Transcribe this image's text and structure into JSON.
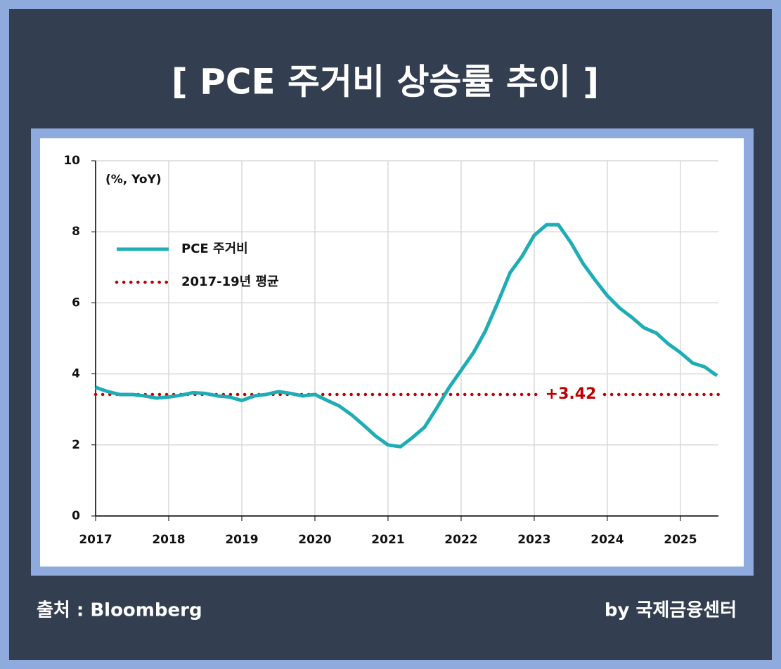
{
  "title": "[ PCE 주거비 상승률 추이 ]",
  "source": "출처 : Bloomberg",
  "credit": "by 국제금융센터",
  "chart_data": {
    "type": "line",
    "unit_label": "(%, YoY)",
    "x": [
      2017,
      2017.17,
      2017.33,
      2017.5,
      2017.67,
      2017.83,
      2018,
      2018.17,
      2018.33,
      2018.5,
      2018.67,
      2018.83,
      2019,
      2019.17,
      2019.33,
      2019.5,
      2019.67,
      2019.83,
      2020,
      2020.17,
      2020.33,
      2020.5,
      2020.67,
      2020.83,
      2021,
      2021.17,
      2021.33,
      2021.5,
      2021.67,
      2021.83,
      2022,
      2022.17,
      2022.33,
      2022.5,
      2022.67,
      2022.83,
      2023,
      2023.17,
      2023.33,
      2023.5,
      2023.67,
      2023.83,
      2024,
      2024.17,
      2024.33,
      2024.5,
      2024.67,
      2024.83,
      2025,
      2025.17,
      2025.33,
      2025.5
    ],
    "series": [
      {
        "name": "PCE 주거비",
        "color": "#1fadb5",
        "values": [
          3.62,
          3.5,
          3.42,
          3.42,
          3.38,
          3.32,
          3.35,
          3.4,
          3.47,
          3.45,
          3.38,
          3.35,
          3.25,
          3.38,
          3.42,
          3.5,
          3.45,
          3.38,
          3.42,
          3.25,
          3.1,
          2.85,
          2.55,
          2.25,
          2.0,
          1.95,
          2.2,
          2.5,
          3.05,
          3.6,
          4.1,
          4.6,
          5.2,
          6.0,
          6.85,
          7.3,
          7.9,
          8.2,
          8.2,
          7.7,
          7.1,
          6.65,
          6.2,
          5.85,
          5.6,
          5.3,
          5.15,
          4.85,
          4.6,
          4.3,
          4.2,
          3.95
        ]
      }
    ],
    "average": {
      "name": "2017-19년 평균",
      "value": 3.42,
      "value_label": "+3.42",
      "color": "#c00000"
    },
    "xlim": [
      2017,
      2025.52
    ],
    "xticks": [
      2017,
      2018,
      2019,
      2020,
      2021,
      2022,
      2023,
      2024,
      2025
    ],
    "ylim": [
      0,
      10
    ],
    "yticks": [
      0,
      2,
      4,
      6,
      8,
      10
    ],
    "grid": true
  }
}
